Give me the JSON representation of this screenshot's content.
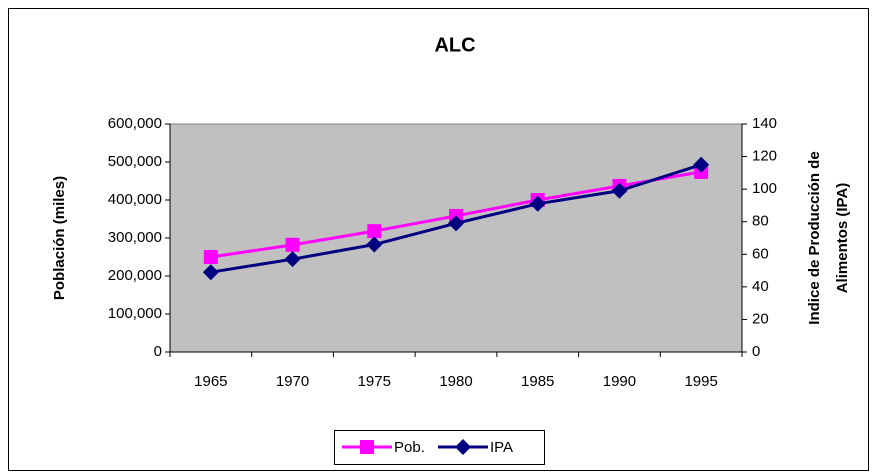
{
  "chart_data": {
    "type": "line",
    "title": "ALC",
    "y_label": "Población (miles)",
    "y2_label": [
      "Indice de Producción de",
      "Alimentos (IPA)"
    ],
    "categories": [
      "1965",
      "1970",
      "1975",
      "1980",
      "1985",
      "1990",
      "1995"
    ],
    "series": [
      {
        "name": "Pob.",
        "color": "#ff00ff",
        "marker": "square",
        "values": [
          250000,
          282000,
          318000,
          358000,
          400000,
          437000,
          474000
        ]
      },
      {
        "name": "IPA",
        "color": "#000080",
        "marker": "diamond",
        "axis": "y2",
        "values": [
          49,
          57,
          66,
          79,
          91,
          99,
          115
        ]
      }
    ],
    "ylim": [
      0,
      600000
    ],
    "yticks": [
      0,
      {
        "value": 100000,
        "label": "100,000"
      },
      {
        "value": 200000,
        "label": "200,000"
      },
      {
        "value": 300000,
        "label": "300,000"
      },
      {
        "value": 400000,
        "label": "400,000"
      },
      {
        "value": 500000,
        "label": "500,000"
      },
      {
        "value": 600000,
        "label": "600,000"
      }
    ],
    "y2lim": [
      0,
      140
    ],
    "y2ticks": [
      0,
      20,
      40,
      60,
      80,
      100,
      120,
      140
    ],
    "legend": "bottom",
    "plot_background": "#c0c0c0"
  }
}
